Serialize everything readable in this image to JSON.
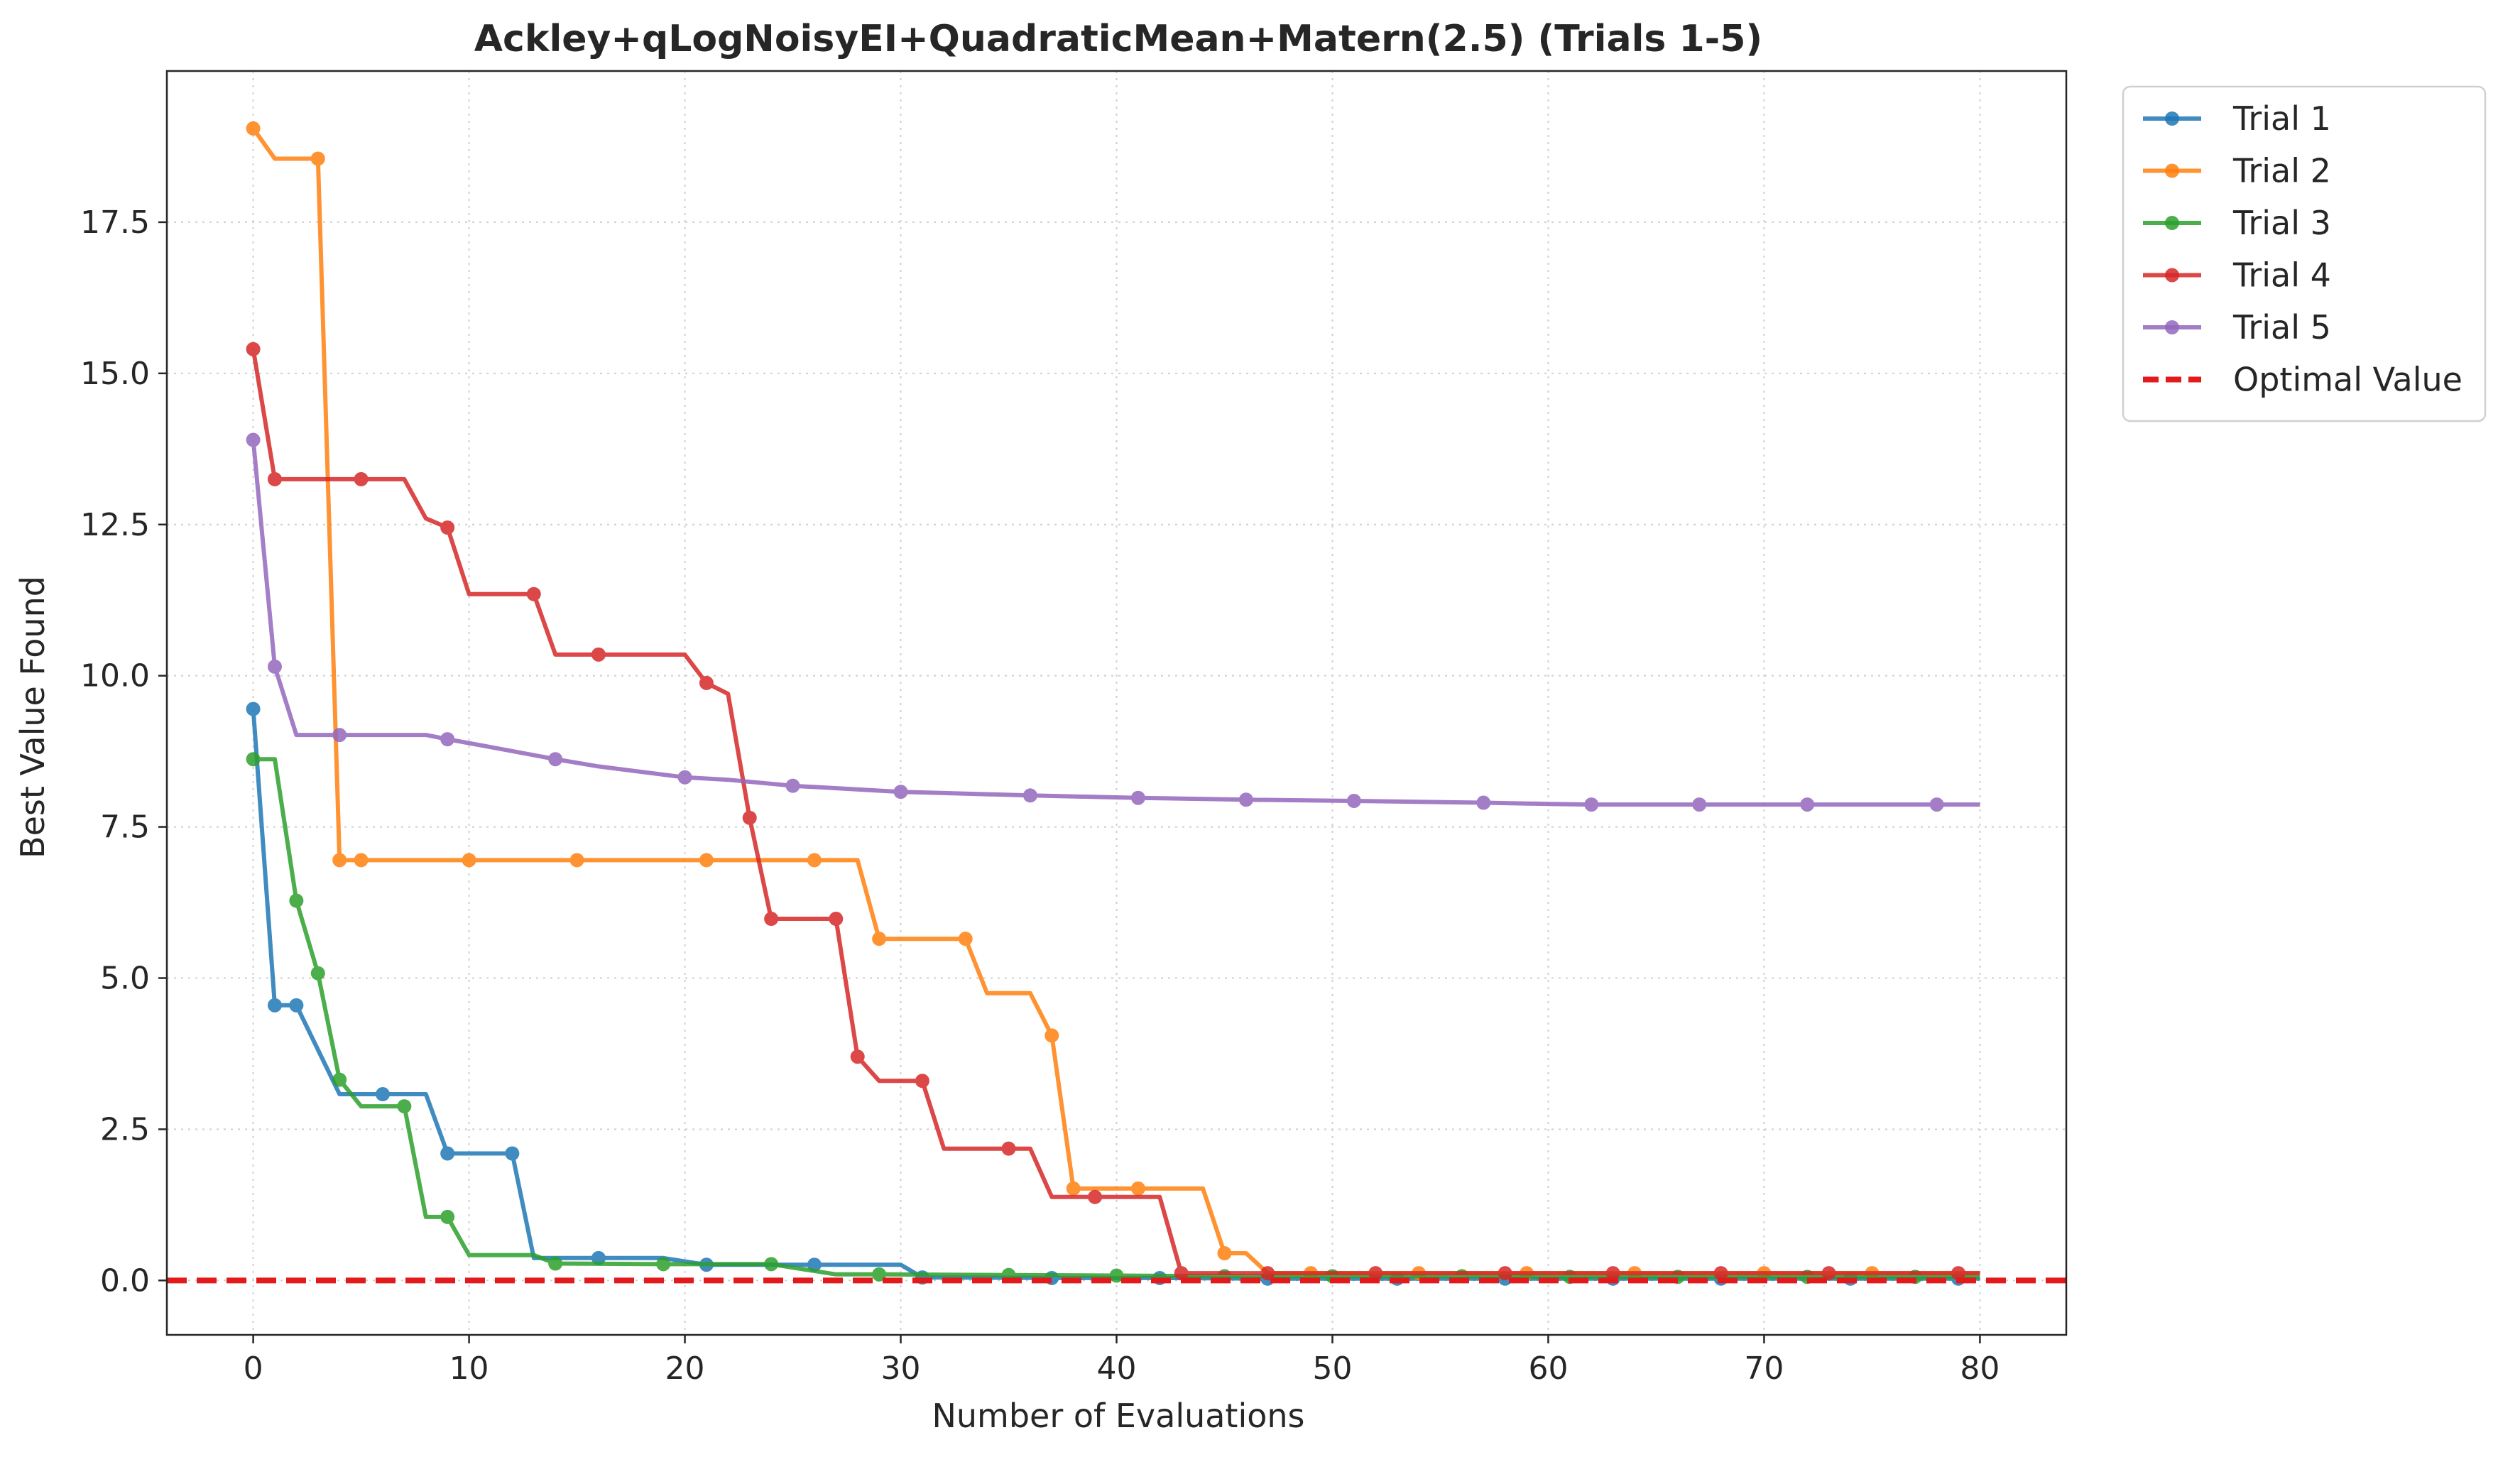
{
  "chart_data": {
    "type": "line",
    "title": "Ackley+qLogNoisyEI+QuadraticMean+Matern(2.5) (Trials 1-5)",
    "xlabel": "Number of Evaluations",
    "ylabel": "Best Value Found",
    "xlim": [
      -4,
      84
    ],
    "ylim": [
      -0.9,
      20.0
    ],
    "xticks": [
      0,
      10,
      20,
      30,
      40,
      50,
      60,
      70,
      80
    ],
    "xtick_labels": [
      "0",
      "10",
      "20",
      "30",
      "40",
      "50",
      "60",
      "70",
      "80"
    ],
    "yticks": [
      0.0,
      2.5,
      5.0,
      7.5,
      10.0,
      12.5,
      15.0,
      17.5
    ],
    "ytick_labels": [
      "0.0",
      "2.5",
      "5.0",
      "7.5",
      "10.0",
      "12.5",
      "15.0",
      "17.5"
    ],
    "grid": true,
    "legend_position": "outside-top-right",
    "series": [
      {
        "name": "Trial 1",
        "color": "#1f77b4",
        "points": [
          [
            0,
            9.45
          ],
          [
            1,
            4.55
          ],
          [
            2,
            4.55
          ],
          [
            4,
            3.08
          ],
          [
            6,
            3.08
          ],
          [
            8,
            3.08
          ],
          [
            9,
            2.1
          ],
          [
            12,
            2.1
          ],
          [
            13,
            0.37
          ],
          [
            16,
            0.37
          ],
          [
            19,
            0.37
          ],
          [
            21,
            0.26
          ],
          [
            26,
            0.26
          ],
          [
            30,
            0.26
          ],
          [
            31,
            0.05
          ],
          [
            37,
            0.04
          ],
          [
            42,
            0.04
          ],
          [
            47,
            0.03
          ],
          [
            53,
            0.03
          ],
          [
            58,
            0.03
          ],
          [
            63,
            0.03
          ],
          [
            68,
            0.03
          ],
          [
            74,
            0.03
          ],
          [
            79,
            0.03
          ],
          [
            80,
            0.03
          ]
        ],
        "markers_x": [
          0,
          1,
          2,
          6,
          9,
          12,
          16,
          21,
          26,
          31,
          37,
          42,
          47,
          53,
          58,
          63,
          68,
          74,
          79
        ]
      },
      {
        "name": "Trial 2",
        "color": "#ff7f0e",
        "points": [
          [
            0,
            19.05
          ],
          [
            1,
            18.55
          ],
          [
            3,
            18.55
          ],
          [
            4,
            6.95
          ],
          [
            5,
            6.95
          ],
          [
            10,
            6.95
          ],
          [
            15,
            6.95
          ],
          [
            21,
            6.95
          ],
          [
            26,
            6.95
          ],
          [
            28,
            6.95
          ],
          [
            29,
            5.65
          ],
          [
            33,
            5.65
          ],
          [
            34,
            4.75
          ],
          [
            36,
            4.75
          ],
          [
            37,
            4.05
          ],
          [
            38,
            1.52
          ],
          [
            41,
            1.52
          ],
          [
            44,
            1.52
          ],
          [
            45,
            0.45
          ],
          [
            46,
            0.45
          ],
          [
            47,
            0.12
          ],
          [
            49,
            0.12
          ],
          [
            54,
            0.12
          ],
          [
            59,
            0.12
          ],
          [
            64,
            0.12
          ],
          [
            70,
            0.12
          ],
          [
            75,
            0.12
          ],
          [
            80,
            0.12
          ]
        ],
        "markers_x": [
          0,
          3,
          4,
          5,
          10,
          15,
          21,
          26,
          29,
          33,
          37,
          38,
          41,
          45,
          49,
          54,
          59,
          64,
          70,
          75
        ]
      },
      {
        "name": "Trial 3",
        "color": "#2ca02c",
        "points": [
          [
            0,
            8.62
          ],
          [
            1,
            8.62
          ],
          [
            2,
            6.28
          ],
          [
            3,
            5.08
          ],
          [
            4,
            3.32
          ],
          [
            5,
            2.88
          ],
          [
            7,
            2.88
          ],
          [
            8,
            1.05
          ],
          [
            9,
            1.05
          ],
          [
            10,
            0.42
          ],
          [
            13,
            0.42
          ],
          [
            14,
            0.28
          ],
          [
            19,
            0.27
          ],
          [
            21,
            0.27
          ],
          [
            24,
            0.27
          ],
          [
            27,
            0.1
          ],
          [
            29,
            0.1
          ],
          [
            35,
            0.09
          ],
          [
            40,
            0.08
          ],
          [
            45,
            0.07
          ],
          [
            50,
            0.07
          ],
          [
            56,
            0.07
          ],
          [
            61,
            0.06
          ],
          [
            66,
            0.06
          ],
          [
            72,
            0.06
          ],
          [
            77,
            0.06
          ],
          [
            80,
            0.06
          ]
        ],
        "markers_x": [
          0,
          2,
          3,
          4,
          7,
          9,
          14,
          19,
          24,
          29,
          35,
          40,
          45,
          50,
          56,
          61,
          66,
          72,
          77
        ]
      },
      {
        "name": "Trial 4",
        "color": "#d62728",
        "points": [
          [
            0,
            15.4
          ],
          [
            1,
            13.25
          ],
          [
            5,
            13.25
          ],
          [
            7,
            13.25
          ],
          [
            8,
            12.6
          ],
          [
            9,
            12.45
          ],
          [
            10,
            11.35
          ],
          [
            13,
            11.35
          ],
          [
            14,
            10.35
          ],
          [
            16,
            10.35
          ],
          [
            20,
            10.35
          ],
          [
            21,
            9.88
          ],
          [
            22,
            9.7
          ],
          [
            23,
            7.65
          ],
          [
            24,
            5.98
          ],
          [
            27,
            5.98
          ],
          [
            28,
            3.7
          ],
          [
            29,
            3.3
          ],
          [
            31,
            3.3
          ],
          [
            32,
            2.18
          ],
          [
            35,
            2.18
          ],
          [
            36,
            2.18
          ],
          [
            37,
            1.38
          ],
          [
            39,
            1.38
          ],
          [
            42,
            1.38
          ],
          [
            43,
            0.12
          ],
          [
            47,
            0.12
          ],
          [
            52,
            0.12
          ],
          [
            58,
            0.12
          ],
          [
            63,
            0.12
          ],
          [
            68,
            0.12
          ],
          [
            73,
            0.12
          ],
          [
            79,
            0.12
          ],
          [
            80,
            0.12
          ]
        ],
        "markers_x": [
          0,
          1,
          5,
          9,
          13,
          16,
          21,
          23,
          24,
          27,
          28,
          31,
          35,
          39,
          43,
          47,
          52,
          58,
          63,
          68,
          73,
          79
        ]
      },
      {
        "name": "Trial 5",
        "color": "#9467bd",
        "points": [
          [
            0,
            13.9
          ],
          [
            1,
            10.15
          ],
          [
            2,
            9.02
          ],
          [
            4,
            9.02
          ],
          [
            8,
            9.02
          ],
          [
            9,
            8.95
          ],
          [
            11,
            8.82
          ],
          [
            14,
            8.62
          ],
          [
            16,
            8.5
          ],
          [
            20,
            8.32
          ],
          [
            22,
            8.28
          ],
          [
            25,
            8.18
          ],
          [
            30,
            8.08
          ],
          [
            32,
            8.06
          ],
          [
            36,
            8.02
          ],
          [
            41,
            7.98
          ],
          [
            46,
            7.95
          ],
          [
            51,
            7.93
          ],
          [
            57,
            7.9
          ],
          [
            60,
            7.88
          ],
          [
            62,
            7.87
          ],
          [
            67,
            7.87
          ],
          [
            72,
            7.87
          ],
          [
            78,
            7.87
          ],
          [
            80,
            7.87
          ]
        ],
        "markers_x": [
          0,
          1,
          4,
          9,
          14,
          20,
          25,
          30,
          36,
          41,
          46,
          51,
          57,
          62,
          67,
          72,
          78
        ]
      }
    ],
    "reference_line": {
      "name": "Optimal Value",
      "y": 0.0,
      "color": "#e31a1c",
      "style": "dashed"
    }
  }
}
